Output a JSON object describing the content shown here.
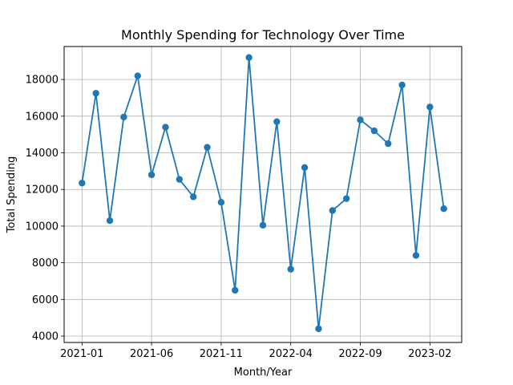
{
  "chart_data": {
    "type": "line",
    "title": "Monthly Spending for Technology Over Time",
    "xlabel": "Month/Year",
    "ylabel": "Total Spending",
    "x": [
      "2021-01",
      "2021-02",
      "2021-03",
      "2021-04",
      "2021-05",
      "2021-06",
      "2021-07",
      "2021-08",
      "2021-09",
      "2021-10",
      "2021-11",
      "2021-12",
      "2022-01",
      "2022-02",
      "2022-03",
      "2022-04",
      "2022-05",
      "2022-06",
      "2022-07",
      "2022-08",
      "2022-09",
      "2022-10",
      "2022-11",
      "2022-12",
      "2023-01",
      "2023-02",
      "2023-03"
    ],
    "series": [
      {
        "values": [
          12350,
          17250,
          10300,
          15950,
          18200,
          12800,
          15400,
          12550,
          11600,
          14300,
          11300,
          6500,
          19200,
          10050,
          15700,
          7650,
          13200,
          4400,
          10850,
          11500,
          15800,
          15200,
          14500,
          17700,
          8400,
          16500,
          10950
        ]
      }
    ],
    "x_ticks": [
      "2021-01",
      "2021-06",
      "2021-11",
      "2022-04",
      "2022-09",
      "2023-02"
    ],
    "y_ticks": [
      "4000",
      "6000",
      "8000",
      "10000",
      "12000",
      "14000",
      "16000",
      "18000"
    ],
    "ylim": [
      3650,
      19800
    ],
    "grid": true,
    "color": "#1f77b4"
  }
}
